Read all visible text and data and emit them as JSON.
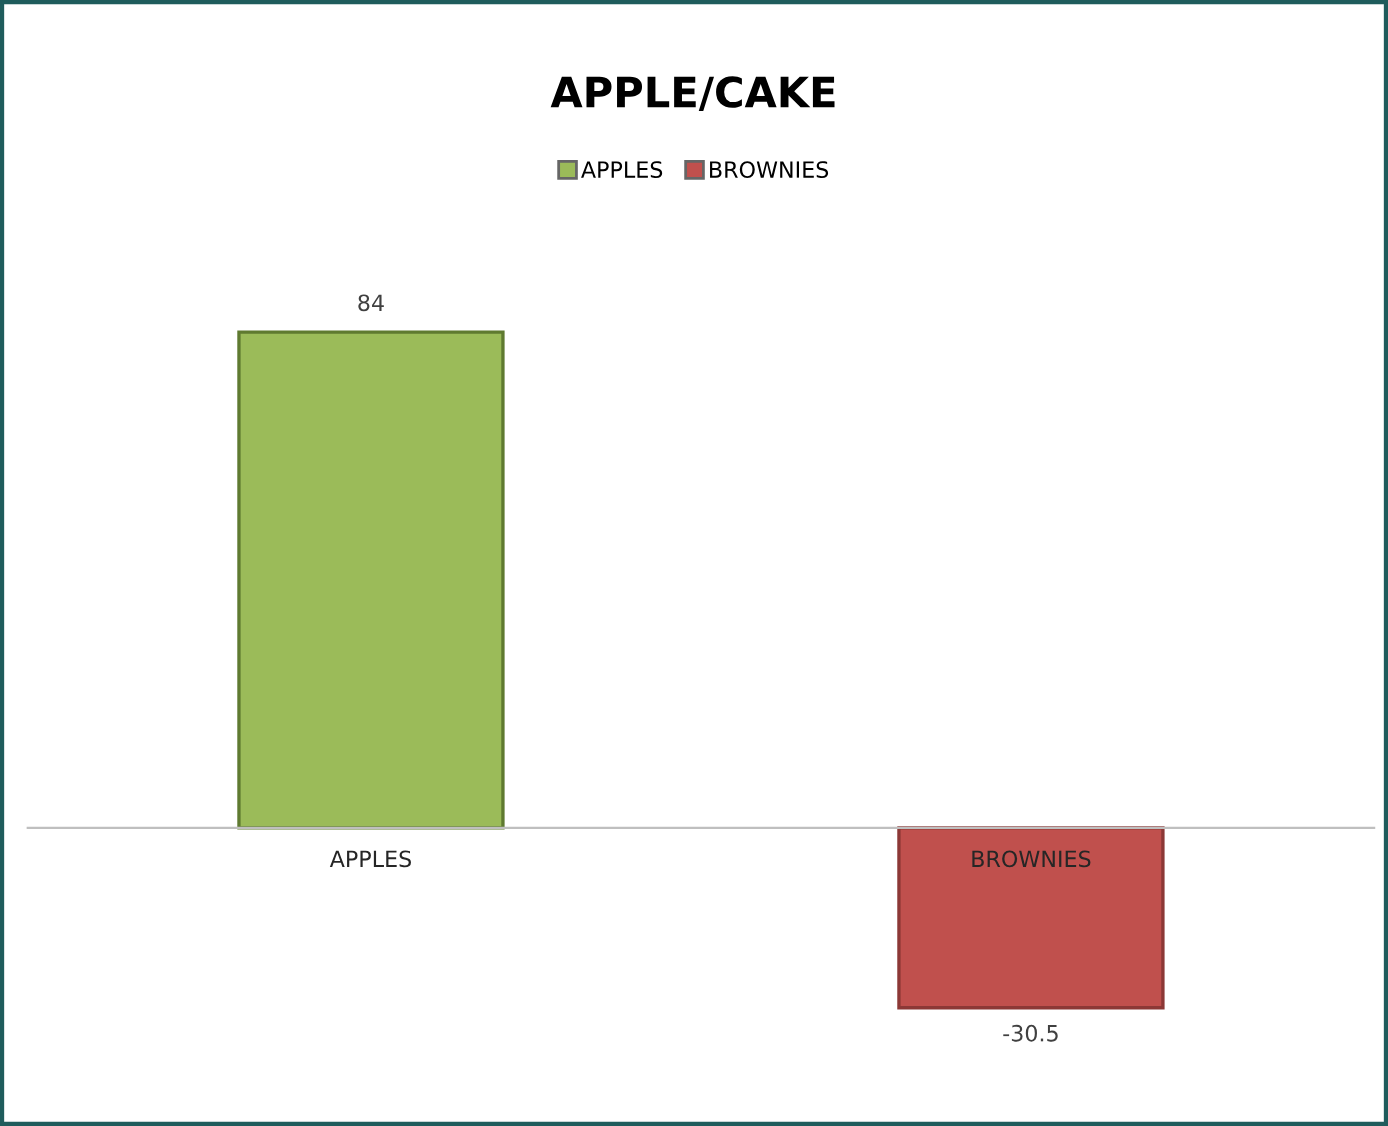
{
  "chart_data": {
    "type": "bar",
    "title": "APPLE/CAKE",
    "categories": [
      "APPLES",
      "BROWNIES"
    ],
    "series": [
      {
        "name": "APPLES",
        "color": "#9bbb59",
        "values": [
          84,
          null
        ]
      },
      {
        "name": "BROWNIES",
        "color": "#c0504d",
        "values": [
          null,
          -30.5
        ]
      }
    ],
    "tick_labels": "x",
    "data_labels": true,
    "legend": "top",
    "grid": false
  }
}
